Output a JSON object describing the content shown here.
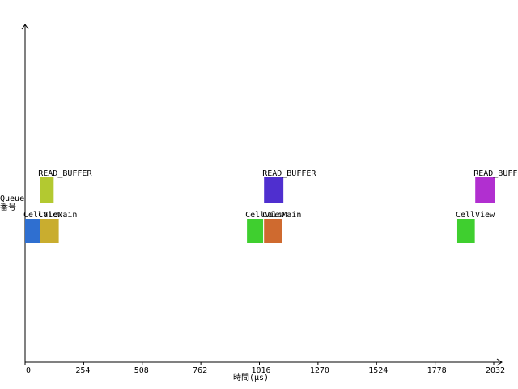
{
  "chart_data": {
    "type": "bar",
    "xlabel": "時間(μs)",
    "ylabel_line1": "Queue",
    "ylabel_line2": "番号",
    "xlim": [
      0,
      2032
    ],
    "xticks": [
      0,
      254,
      508,
      762,
      1016,
      1270,
      1524,
      1778,
      2032
    ],
    "lanes": [
      {
        "name": "upper",
        "bars": [
          {
            "label": "READ_BUFFER",
            "start": 64,
            "end": 124,
            "color": "#b3c930"
          },
          {
            "label": "READ_BUFFER",
            "start": 1036,
            "end": 1120,
            "color": "#4f2fcf"
          },
          {
            "label": "READ_BUFFER",
            "start": 1952,
            "end": 2036,
            "color": "#b12fd0"
          }
        ]
      },
      {
        "name": "lower",
        "bars": [
          {
            "label": "CellView",
            "start": 0,
            "end": 64,
            "color": "#2f6fd0"
          },
          {
            "label": "CalcMain",
            "start": 64,
            "end": 146,
            "color": "#c9ad2f"
          },
          {
            "label": "CellView",
            "start": 962,
            "end": 1032,
            "color": "#3fcf2f"
          },
          {
            "label": "CalcMain",
            "start": 1036,
            "end": 1116,
            "color": "#cf6a2f"
          },
          {
            "label": "CellView",
            "start": 1874,
            "end": 1950,
            "color": "#3fcf2f"
          }
        ]
      }
    ]
  }
}
